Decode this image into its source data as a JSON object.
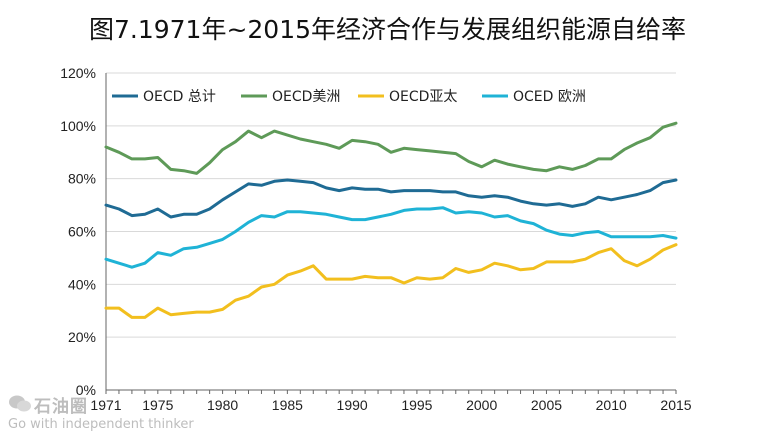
{
  "title": "图7.1971年~2015年经济合作与发展组织能源自给率",
  "chart_data": {
    "type": "line",
    "title": "图7.1971年~2015年经济合作与发展组织能源自给率",
    "xlabel": "",
    "ylabel": "",
    "x": [
      1971,
      1972,
      1973,
      1974,
      1975,
      1976,
      1977,
      1978,
      1979,
      1980,
      1981,
      1982,
      1983,
      1984,
      1985,
      1986,
      1987,
      1988,
      1989,
      1990,
      1991,
      1992,
      1993,
      1994,
      1995,
      1996,
      1997,
      1998,
      1999,
      2000,
      2001,
      2002,
      2003,
      2004,
      2005,
      2006,
      2007,
      2008,
      2009,
      2010,
      2011,
      2012,
      2013,
      2014,
      2015
    ],
    "xticks": [
      "1971",
      "1975",
      "1980",
      "1985",
      "1990",
      "1995",
      "2000",
      "2005",
      "2010",
      "2015"
    ],
    "xtick_values": [
      1971,
      1975,
      1980,
      1985,
      1990,
      1995,
      2000,
      2005,
      2010,
      2015
    ],
    "yticks": [
      "0%",
      "20%",
      "40%",
      "60%",
      "80%",
      "100%",
      "120%"
    ],
    "ytick_values": [
      0,
      20,
      40,
      60,
      80,
      100,
      120
    ],
    "ylim": [
      0,
      120
    ],
    "xlim": [
      1971,
      2015
    ],
    "grid": "horizontal",
    "legend_position": "top",
    "series": [
      {
        "name": "OECD 总计",
        "color": "#1f6b94",
        "values": [
          70,
          68.5,
          66,
          66.5,
          68.5,
          65.5,
          66.5,
          66.5,
          68.5,
          72,
          75,
          78,
          77.5,
          79,
          79.5,
          79,
          78.5,
          76.5,
          75.5,
          76.5,
          76,
          76,
          75,
          75.5,
          75.5,
          75.5,
          75,
          75,
          73.5,
          73,
          73.5,
          73,
          71.5,
          70.5,
          70,
          70.5,
          69.5,
          70.5,
          73,
          72,
          73,
          74,
          75.5,
          78.5,
          79.5
        ]
      },
      {
        "name": "OECD美洲",
        "color": "#5e9a58",
        "values": [
          92,
          90,
          87.5,
          87.5,
          88,
          83.5,
          83,
          82,
          86,
          91,
          94,
          98,
          95.5,
          98,
          96.5,
          95,
          94,
          93,
          91.5,
          94.5,
          94,
          93,
          90,
          91.5,
          91,
          90.5,
          90,
          89.5,
          86.5,
          84.5,
          87,
          85.5,
          84.5,
          83.5,
          83,
          84.5,
          83.5,
          85,
          87.5,
          87.5,
          91,
          93.5,
          95.5,
          99.5,
          101
        ]
      },
      {
        "name": "OECD亚太",
        "color": "#f2bf1e",
        "values": [
          31,
          31,
          27.5,
          27.5,
          31,
          28.5,
          29,
          29.5,
          29.5,
          30.5,
          34,
          35.5,
          39,
          40,
          43.5,
          45,
          47,
          42,
          42,
          42,
          43,
          42.5,
          42.5,
          40.5,
          42.5,
          42,
          42.5,
          46,
          44.5,
          45.5,
          48,
          47,
          45.5,
          46,
          48.5,
          48.5,
          48.5,
          49.5,
          52,
          53.5,
          49,
          47,
          49.5,
          53,
          55
        ]
      },
      {
        "name": "OCED 欧洲",
        "color": "#1fb3d6",
        "values": [
          49.5,
          48,
          46.5,
          48,
          52,
          51,
          53.5,
          54,
          55.5,
          57,
          60,
          63.5,
          66,
          65.5,
          67.5,
          67.5,
          67,
          66.5,
          65.5,
          64.5,
          64.5,
          65.5,
          66.5,
          68,
          68.5,
          68.5,
          69,
          67,
          67.5,
          67,
          65.5,
          66,
          64,
          63,
          60.5,
          59,
          58.5,
          59.5,
          60,
          58,
          58,
          58,
          58,
          58.5,
          57.5
        ]
      }
    ]
  },
  "watermark": {
    "name": "石油圈",
    "subtitle": "Go with independent thinker"
  }
}
